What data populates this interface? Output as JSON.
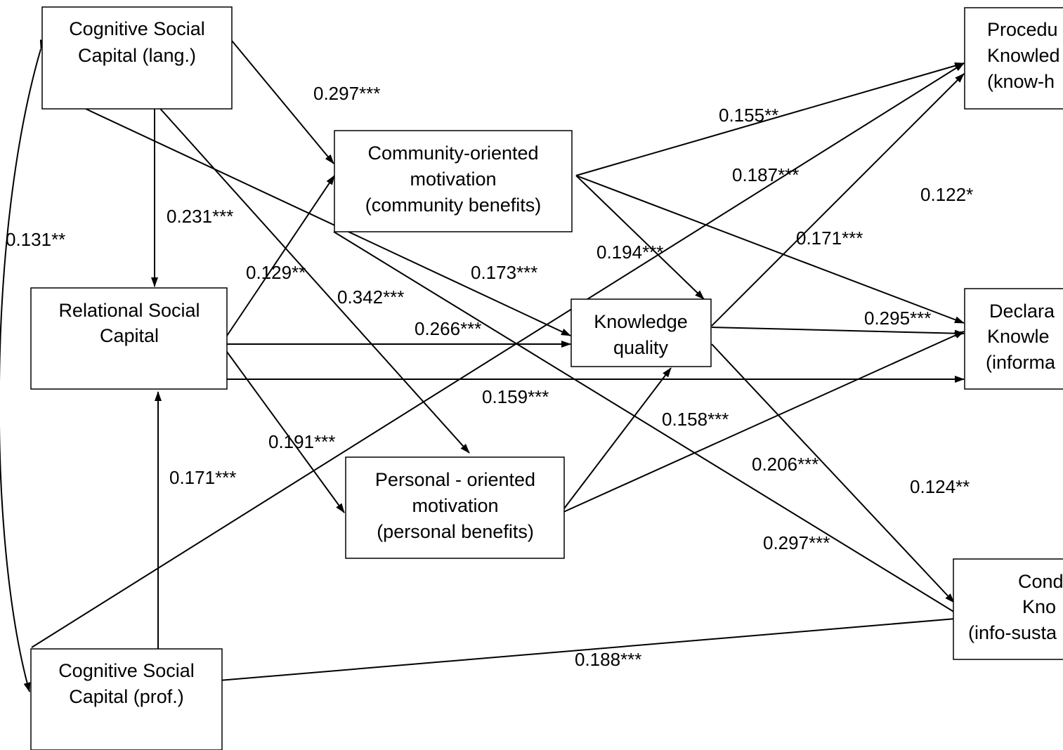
{
  "nodes": {
    "cog_lang": [
      "Cognitive Social",
      "Capital (lang.)"
    ],
    "community": [
      "Community-oriented",
      "motivation",
      "(community benefits)"
    ],
    "relational": [
      "Relational Social",
      "Capital"
    ],
    "knowledge_quality": [
      "Knowledge",
      "quality"
    ],
    "personal": [
      "Personal - oriented",
      "motivation",
      "(personal benefits)"
    ],
    "cog_prof": [
      "Cognitive Social",
      "Capital (prof.)"
    ],
    "procedural": [
      "Procedu",
      "Knowled",
      "(know-h"
    ],
    "declarative": [
      "Declara",
      "Knowle",
      "(informa"
    ],
    "conditional": [
      "Cond",
      "Kno",
      "(info-susta"
    ]
  },
  "edge_labels": {
    "e01": "0.297***",
    "e02": "0.231***",
    "e03": "0.131**",
    "e04": "0.155**",
    "e05": "0.187***",
    "e06": "0.122*",
    "e07": "0.194***",
    "e08": "0.171***",
    "e09": "0.129**",
    "e10": "0.173***",
    "e11": "0.342***",
    "e12": "0.266***",
    "e13": "0.295***",
    "e14": "0.159***",
    "e15": "0.158***",
    "e16": "0.191***",
    "e17": "0.206***",
    "e18": "0.171***",
    "e19": "0.124**",
    "e20": "0.297***",
    "e21": "0.188***"
  }
}
